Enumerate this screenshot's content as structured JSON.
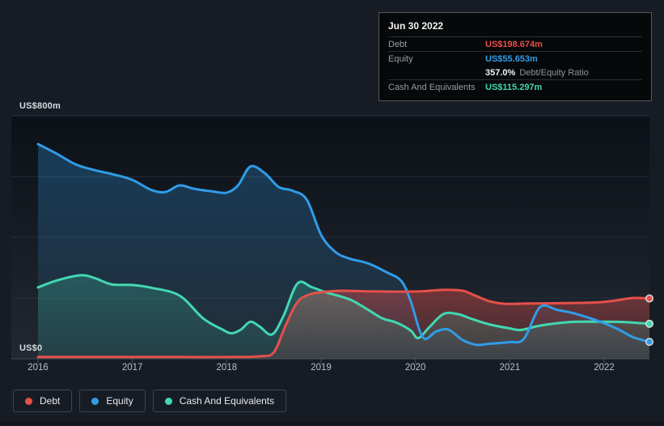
{
  "tooltip": {
    "date": "Jun 30 2022",
    "debt_label": "Debt",
    "debt_value": "US$198.674m",
    "equity_label": "Equity",
    "equity_value": "US$55.653m",
    "ratio_value": "357.0%",
    "ratio_label": "Debt/Equity Ratio",
    "cash_label": "Cash And Equivalents",
    "cash_value": "US$115.297m"
  },
  "axis": {
    "y_top_label": "US$800m",
    "y_bottom_label": "US$0",
    "x_labels": [
      "2016",
      "2017",
      "2018",
      "2019",
      "2020",
      "2021",
      "2022"
    ]
  },
  "legend": {
    "items": [
      {
        "label": "Debt"
      },
      {
        "label": "Equity"
      },
      {
        "label": "Cash And Equivalents"
      }
    ]
  },
  "chart_data": {
    "type": "area",
    "unit": "US$ millions",
    "title": "Debt, Equity and Cash history",
    "x_range": [
      2016,
      2022.48
    ],
    "y_range": [
      0,
      800
    ],
    "y_ticks": [
      0,
      200,
      400,
      600,
      800
    ],
    "y_tick_labeled": [
      "US$0",
      "US$800m"
    ],
    "x_ticks": [
      2016,
      2017,
      2018,
      2019,
      2020,
      2021,
      2022
    ],
    "grid": true,
    "legend_position": "bottom-left",
    "series": [
      {
        "name": "Debt",
        "color": "#e5504b",
        "end_value": 198.674,
        "points": [
          [
            2016,
            6
          ],
          [
            2016.5,
            6
          ],
          [
            2017,
            6
          ],
          [
            2017.5,
            6
          ],
          [
            2018,
            6
          ],
          [
            2018.35,
            8
          ],
          [
            2018.5,
            22
          ],
          [
            2018.62,
            107
          ],
          [
            2018.75,
            187
          ],
          [
            2018.88,
            212
          ],
          [
            2019,
            219
          ],
          [
            2019.2,
            224
          ],
          [
            2019.5,
            222
          ],
          [
            2019.8,
            221
          ],
          [
            2020.05,
            222
          ],
          [
            2020.3,
            227
          ],
          [
            2020.5,
            224
          ],
          [
            2020.62,
            210
          ],
          [
            2020.78,
            190
          ],
          [
            2020.95,
            181
          ],
          [
            2021.2,
            182
          ],
          [
            2021.5,
            183
          ],
          [
            2021.75,
            184
          ],
          [
            2021.95,
            186
          ],
          [
            2022.1,
            191
          ],
          [
            2022.3,
            200
          ],
          [
            2022.48,
            198.674
          ]
        ]
      },
      {
        "name": "Equity",
        "color": "#309ce8",
        "end_value": 55.653,
        "points": [
          [
            2016,
            707
          ],
          [
            2016.2,
            675
          ],
          [
            2016.4,
            640
          ],
          [
            2016.6,
            621
          ],
          [
            2016.8,
            607
          ],
          [
            2017,
            589
          ],
          [
            2017.2,
            556
          ],
          [
            2017.35,
            549
          ],
          [
            2017.5,
            571
          ],
          [
            2017.65,
            560
          ],
          [
            2017.85,
            551
          ],
          [
            2018,
            547
          ],
          [
            2018.12,
            571
          ],
          [
            2018.25,
            633
          ],
          [
            2018.4,
            612
          ],
          [
            2018.55,
            566
          ],
          [
            2018.7,
            553
          ],
          [
            2018.85,
            523
          ],
          [
            2019,
            408
          ],
          [
            2019.15,
            352
          ],
          [
            2019.3,
            330
          ],
          [
            2019.5,
            314
          ],
          [
            2019.7,
            284
          ],
          [
            2019.85,
            256
          ],
          [
            2019.95,
            190
          ],
          [
            2020.08,
            70
          ],
          [
            2020.22,
            90
          ],
          [
            2020.35,
            96
          ],
          [
            2020.5,
            62
          ],
          [
            2020.65,
            46
          ],
          [
            2020.8,
            50
          ],
          [
            2021,
            55
          ],
          [
            2021.15,
            66
          ],
          [
            2021.32,
            170
          ],
          [
            2021.5,
            161
          ],
          [
            2021.7,
            148
          ],
          [
            2021.95,
            123
          ],
          [
            2022.15,
            97
          ],
          [
            2022.3,
            72
          ],
          [
            2022.48,
            55.653
          ]
        ]
      },
      {
        "name": "Cash And Equivalents",
        "color": "#42d8b2",
        "end_value": 115.297,
        "points": [
          [
            2016,
            235
          ],
          [
            2016.2,
            258
          ],
          [
            2016.45,
            275
          ],
          [
            2016.6,
            266
          ],
          [
            2016.78,
            245
          ],
          [
            2017,
            243
          ],
          [
            2017.2,
            234
          ],
          [
            2017.5,
            208
          ],
          [
            2017.75,
            133
          ],
          [
            2017.95,
            97
          ],
          [
            2018.05,
            84
          ],
          [
            2018.15,
            96
          ],
          [
            2018.25,
            122
          ],
          [
            2018.35,
            106
          ],
          [
            2018.48,
            80
          ],
          [
            2018.6,
            140
          ],
          [
            2018.75,
            248
          ],
          [
            2018.9,
            236
          ],
          [
            2019.05,
            219
          ],
          [
            2019.3,
            196
          ],
          [
            2019.5,
            161
          ],
          [
            2019.65,
            133
          ],
          [
            2019.8,
            119
          ],
          [
            2019.95,
            93
          ],
          [
            2020.03,
            68
          ],
          [
            2020.15,
            105
          ],
          [
            2020.3,
            148
          ],
          [
            2020.45,
            147
          ],
          [
            2020.6,
            131
          ],
          [
            2020.8,
            112
          ],
          [
            2021,
            100
          ],
          [
            2021.12,
            95
          ],
          [
            2021.3,
            108
          ],
          [
            2021.5,
            117
          ],
          [
            2021.7,
            122
          ],
          [
            2021.95,
            122
          ],
          [
            2022.2,
            121
          ],
          [
            2022.48,
            115.297
          ]
        ]
      }
    ]
  }
}
